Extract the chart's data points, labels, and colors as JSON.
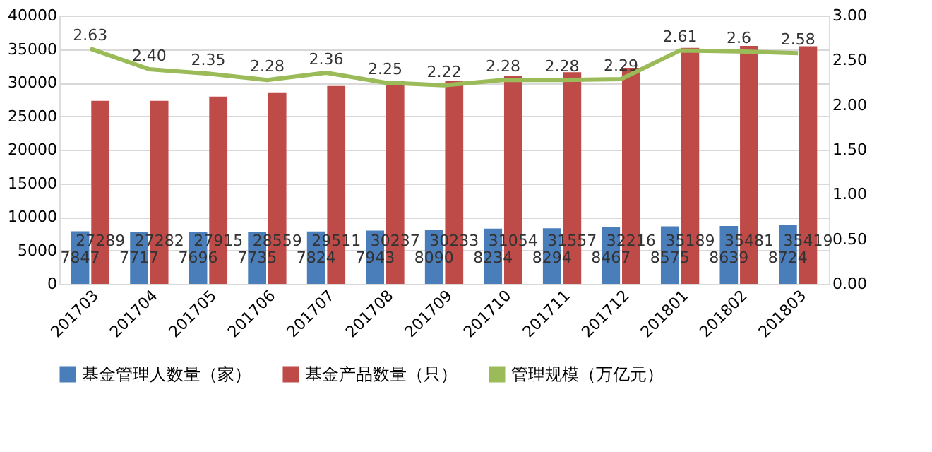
{
  "chart_data": {
    "type": "bar",
    "categories": [
      "201703",
      "201704",
      "201705",
      "201706",
      "201707",
      "201708",
      "201709",
      "201710",
      "201711",
      "201712",
      "201801",
      "201802",
      "201803"
    ],
    "series": [
      {
        "name": "基金管理人数量（家）",
        "color": "#4a7ebb",
        "values": [
          7847,
          7717,
          7696,
          7735,
          7824,
          7943,
          8090,
          8234,
          8294,
          8467,
          8575,
          8639,
          8724
        ],
        "value_labels": [
          "7847",
          "7717",
          "7696",
          "7735",
          "7824",
          "7943",
          "8090",
          "8234",
          "8294",
          "8467",
          "8575",
          "8639",
          "8724"
        ]
      },
      {
        "name": "基金产品数量（只）",
        "color": "#be4b48",
        "values": [
          27289,
          27282,
          27915,
          28559,
          29511,
          30237,
          30233,
          31054,
          31557,
          32216,
          35189,
          35481,
          35419
        ],
        "value_labels": [
          "27289",
          "27282",
          "27915",
          "28559",
          "29511",
          "30237",
          "30233",
          "31054",
          "31557",
          "32216",
          "35189",
          "35481",
          "35419"
        ]
      },
      {
        "name": "管理规模（万亿元）",
        "type": "line",
        "axis": "y2",
        "color": "#9bbb59",
        "values": [
          2.63,
          2.4,
          2.35,
          2.28,
          2.36,
          2.25,
          2.22,
          2.28,
          2.28,
          2.29,
          2.61,
          2.6,
          2.58
        ],
        "value_labels": [
          "2.63",
          "2.40",
          "2.35",
          "2.28",
          "2.36",
          "2.25",
          "2.22",
          "2.28",
          "2.28",
          "2.29",
          "2.61",
          "2.6",
          "2.58"
        ]
      }
    ],
    "ylim": [
      0,
      40000
    ],
    "yticks": [
      0,
      5000,
      10000,
      15000,
      20000,
      25000,
      30000,
      35000,
      40000
    ],
    "y2lim": [
      0,
      3
    ],
    "y2ticks": [
      {
        "value": 0,
        "label": "0.00"
      },
      {
        "value": 0.5,
        "label": "0.50"
      },
      {
        "value": 1,
        "label": "1.00"
      },
      {
        "value": 1.5,
        "label": "1.50"
      },
      {
        "value": 2,
        "label": "2.00"
      },
      {
        "value": 2.5,
        "label": "2.50"
      },
      {
        "value": 3,
        "label": "3.00"
      }
    ],
    "grid": "y",
    "legend": "bottom",
    "marker": "none",
    "line_style": "solid"
  }
}
